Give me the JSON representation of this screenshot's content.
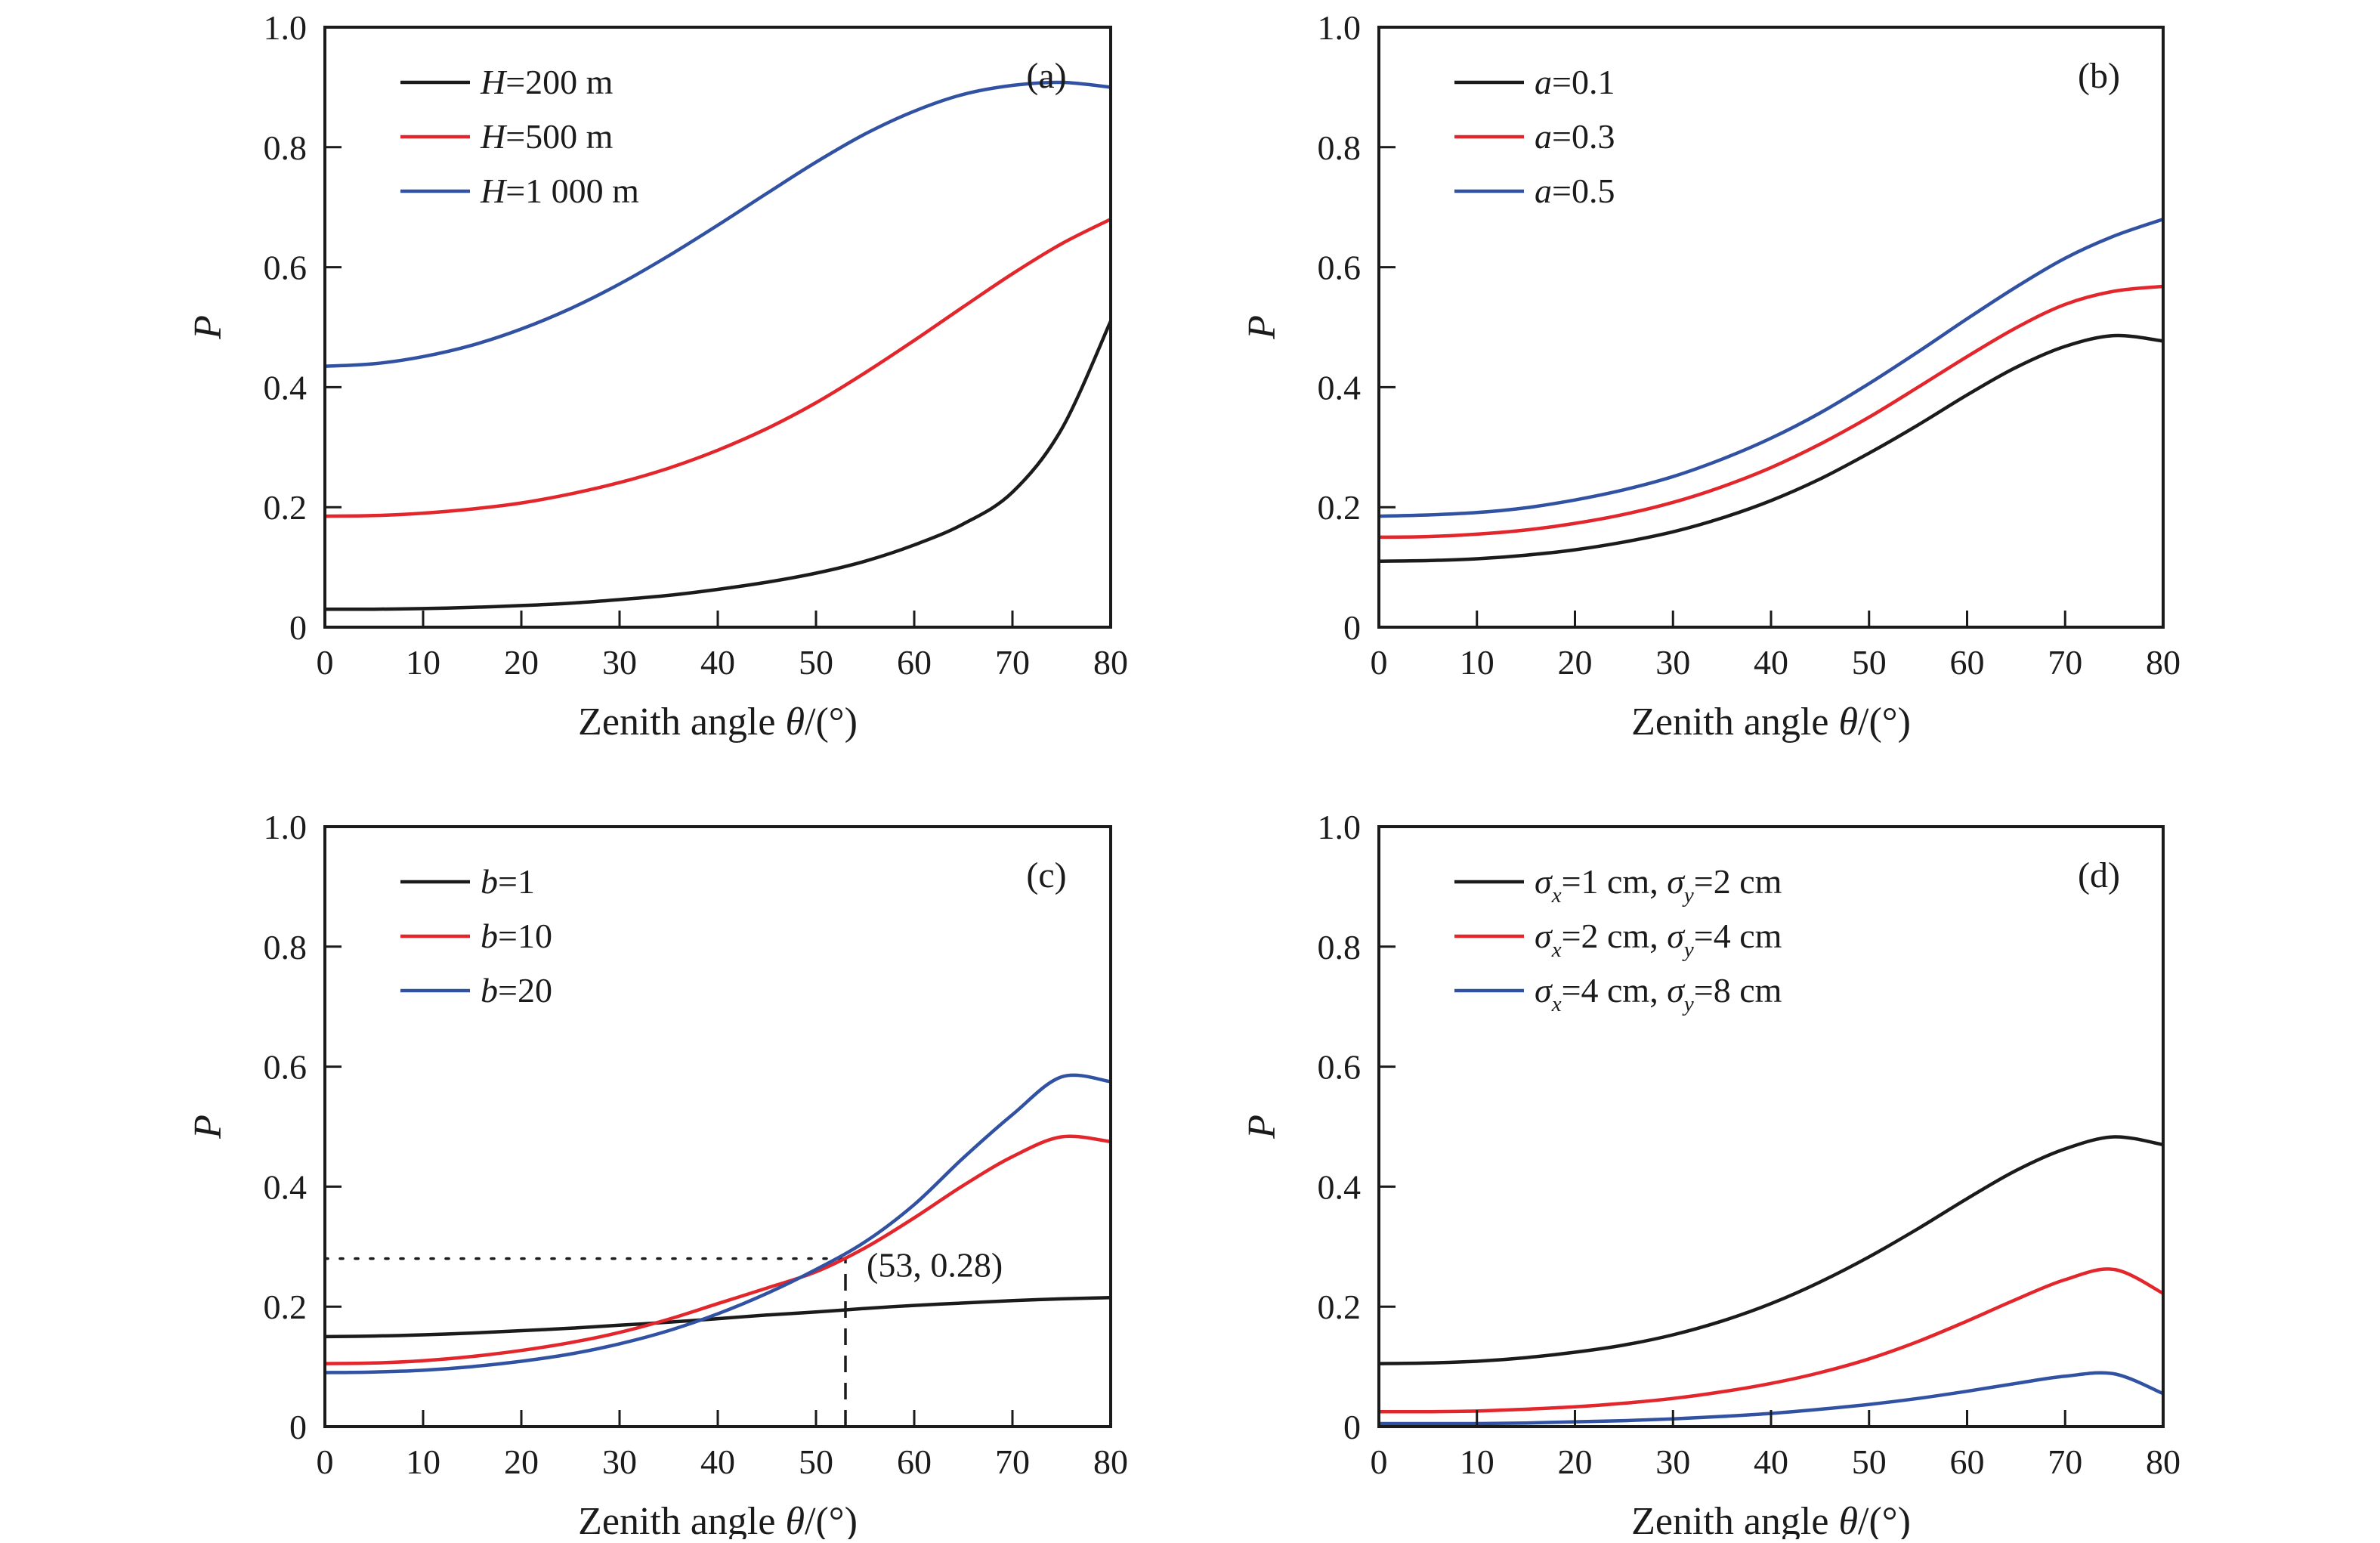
{
  "figure": {
    "background": "#ffffff",
    "axis_color": "#1b1b1b",
    "series_colors": {
      "black": "#1b1b1b",
      "red": "#e2262c",
      "blue": "#3152a2"
    }
  },
  "chart_data": [
    {
      "type": "line",
      "panel_label": "(a)",
      "xlabel": "Zenith angle *θ*/(°)",
      "ylabel": "*P*",
      "xlim": [
        0,
        80
      ],
      "ylim": [
        0,
        1
      ],
      "xticks": [
        0,
        10,
        20,
        30,
        40,
        50,
        60,
        70,
        80
      ],
      "yticks": [
        0,
        0.2,
        0.4,
        0.6,
        0.8,
        1.0
      ],
      "legend_position": "top-left",
      "grid": false,
      "x": [
        0,
        5,
        10,
        15,
        20,
        25,
        30,
        35,
        40,
        45,
        50,
        55,
        60,
        65,
        70,
        75,
        80
      ],
      "series": [
        {
          "name": "*H*=200 m",
          "color": "#1b1b1b",
          "values": [
            0.03,
            0.03,
            0.031,
            0.033,
            0.036,
            0.04,
            0.046,
            0.053,
            0.063,
            0.075,
            0.09,
            0.11,
            0.137,
            0.172,
            0.225,
            0.33,
            0.51
          ]
        },
        {
          "name": "*H*=500 m",
          "color": "#e2262c",
          "values": [
            0.185,
            0.186,
            0.19,
            0.197,
            0.207,
            0.222,
            0.241,
            0.265,
            0.295,
            0.331,
            0.374,
            0.424,
            0.478,
            0.534,
            0.589,
            0.639,
            0.68
          ]
        },
        {
          "name": "*H*=1 000 m",
          "color": "#3152a2",
          "values": [
            0.435,
            0.439,
            0.451,
            0.47,
            0.497,
            0.531,
            0.572,
            0.619,
            0.67,
            0.723,
            0.775,
            0.822,
            0.86,
            0.888,
            0.903,
            0.908,
            0.9
          ]
        }
      ]
    },
    {
      "type": "line",
      "panel_label": "(b)",
      "xlabel": "Zenith angle *θ*/(°)",
      "ylabel": "*P*",
      "xlim": [
        0,
        80
      ],
      "ylim": [
        0,
        1
      ],
      "xticks": [
        0,
        10,
        20,
        30,
        40,
        50,
        60,
        70,
        80
      ],
      "yticks": [
        0,
        0.2,
        0.4,
        0.6,
        0.8,
        1.0
      ],
      "legend_position": "top-left",
      "grid": false,
      "x": [
        0,
        5,
        10,
        15,
        20,
        25,
        30,
        35,
        40,
        45,
        50,
        55,
        60,
        65,
        70,
        75,
        80
      ],
      "series": [
        {
          "name": "*a*=0.1",
          "color": "#1b1b1b",
          "values": [
            0.11,
            0.111,
            0.114,
            0.12,
            0.129,
            0.142,
            0.159,
            0.182,
            0.211,
            0.247,
            0.29,
            0.337,
            0.387,
            0.433,
            0.468,
            0.486,
            0.477
          ]
        },
        {
          "name": "*a*=0.3",
          "color": "#e2262c",
          "values": [
            0.15,
            0.151,
            0.155,
            0.162,
            0.173,
            0.188,
            0.208,
            0.234,
            0.266,
            0.305,
            0.35,
            0.4,
            0.451,
            0.499,
            0.538,
            0.56,
            0.568
          ]
        },
        {
          "name": "*a*=0.5",
          "color": "#3152a2",
          "values": [
            0.185,
            0.187,
            0.191,
            0.199,
            0.212,
            0.229,
            0.251,
            0.28,
            0.315,
            0.357,
            0.406,
            0.459,
            0.514,
            0.567,
            0.615,
            0.652,
            0.68
          ]
        }
      ]
    },
    {
      "type": "line",
      "panel_label": "(c)",
      "xlabel": "Zenith angle *θ*/(°)",
      "ylabel": "*P*",
      "xlim": [
        0,
        80
      ],
      "ylim": [
        0,
        1
      ],
      "xticks": [
        0,
        10,
        20,
        30,
        40,
        50,
        60,
        70,
        80
      ],
      "yticks": [
        0,
        0.2,
        0.4,
        0.6,
        0.8,
        1.0
      ],
      "legend_position": "top-left",
      "grid": false,
      "annotation": {
        "x": 53,
        "y": 0.28,
        "label": "(53, 0.28)"
      },
      "x": [
        0,
        5,
        10,
        15,
        20,
        25,
        30,
        35,
        40,
        45,
        50,
        55,
        60,
        65,
        70,
        75,
        80
      ],
      "series": [
        {
          "name": "*b*=1",
          "color": "#1b1b1b",
          "values": [
            0.15,
            0.151,
            0.153,
            0.156,
            0.16,
            0.164,
            0.169,
            0.174,
            0.18,
            0.186,
            0.191,
            0.197,
            0.202,
            0.206,
            0.21,
            0.213,
            0.215
          ]
        },
        {
          "name": "*b*=10",
          "color": "#e2262c",
          "values": [
            0.105,
            0.106,
            0.11,
            0.117,
            0.127,
            0.14,
            0.157,
            0.179,
            0.205,
            0.231,
            0.258,
            0.298,
            0.348,
            0.402,
            0.45,
            0.483,
            0.475
          ]
        },
        {
          "name": "*b*=20",
          "color": "#3152a2",
          "values": [
            0.09,
            0.091,
            0.094,
            0.1,
            0.109,
            0.121,
            0.138,
            0.16,
            0.188,
            0.222,
            0.262,
            0.308,
            0.37,
            0.448,
            0.52,
            0.583,
            0.575
          ]
        }
      ]
    },
    {
      "type": "line",
      "panel_label": "(d)",
      "xlabel": "Zenith angle *θ*/(°)",
      "ylabel": "*P*",
      "xlim": [
        0,
        80
      ],
      "ylim": [
        0,
        1
      ],
      "xticks": [
        0,
        10,
        20,
        30,
        40,
        50,
        60,
        70,
        80
      ],
      "yticks": [
        0,
        0.2,
        0.4,
        0.6,
        0.8,
        1.0
      ],
      "legend_position": "top-left",
      "grid": false,
      "x": [
        0,
        5,
        10,
        15,
        20,
        25,
        30,
        35,
        40,
        45,
        50,
        55,
        60,
        65,
        70,
        75,
        80
      ],
      "series": [
        {
          "name": "*σ*~x~=1 cm, *σ*~y~=2 cm",
          "color": "#1b1b1b",
          "values": [
            0.105,
            0.106,
            0.109,
            0.115,
            0.124,
            0.136,
            0.153,
            0.176,
            0.205,
            0.241,
            0.283,
            0.33,
            0.38,
            0.427,
            0.463,
            0.483,
            0.47
          ]
        },
        {
          "name": "*σ*~x~=2 cm, *σ*~y~=4 cm",
          "color": "#e2262c",
          "values": [
            0.025,
            0.025,
            0.026,
            0.029,
            0.033,
            0.039,
            0.047,
            0.058,
            0.072,
            0.09,
            0.113,
            0.142,
            0.176,
            0.212,
            0.245,
            0.262,
            0.222
          ]
        },
        {
          "name": "*σ*~x~=4 cm, *σ*~y~=8 cm",
          "color": "#3152a2",
          "values": [
            0.005,
            0.005,
            0.005,
            0.006,
            0.008,
            0.01,
            0.013,
            0.017,
            0.022,
            0.029,
            0.037,
            0.047,
            0.059,
            0.072,
            0.084,
            0.088,
            0.055
          ]
        }
      ]
    }
  ]
}
